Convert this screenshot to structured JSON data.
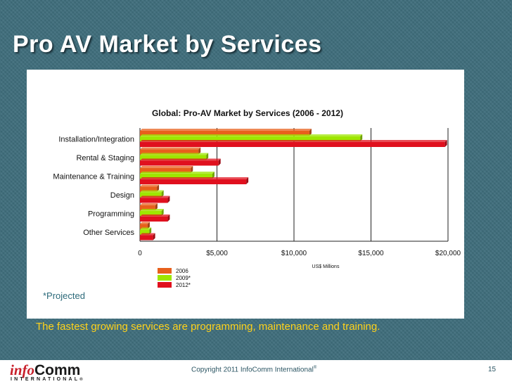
{
  "slide": {
    "title": "Pro AV Market by Services",
    "projected_note": "*Projected",
    "caption": "The fastest growing services are programming, maintenance and training.",
    "copyright": "Copyright 2011 InfoComm International",
    "copyright_mark": "®",
    "page_number": "15",
    "logo": {
      "part1": "info",
      "part2": "Comm",
      "sub": "INTERNATIONAL",
      "mark": "®"
    }
  },
  "chart_data": {
    "type": "bar",
    "orientation": "horizontal",
    "title": "Global: Pro-AV Market by Services (2006 - 2012)",
    "xlabel": "US$ Millions",
    "ylabel": "",
    "categories": [
      "Installation/Integration",
      "Rental & Staging",
      "Maintenance & Training",
      "Design",
      "Programming",
      "Other Services"
    ],
    "xlim": [
      0,
      20000
    ],
    "ticks": [
      0,
      5000,
      10000,
      15000,
      20000
    ],
    "tick_labels": [
      "0",
      "$5,000",
      "$10,000",
      "$15,000",
      "$20,000"
    ],
    "grid": true,
    "legend_position": "bottom",
    "series": [
      {
        "name": "2006",
        "color": "#e8601c",
        "values": [
          11000,
          3800,
          3300,
          1100,
          1000,
          500
        ]
      },
      {
        "name": "2009*",
        "color": "#9ee600",
        "values": [
          14300,
          4300,
          4700,
          1400,
          1400,
          600
        ]
      },
      {
        "name": "2012*",
        "color": "#e0101e",
        "values": [
          19800,
          5100,
          6900,
          1800,
          1800,
          850
        ]
      }
    ]
  }
}
